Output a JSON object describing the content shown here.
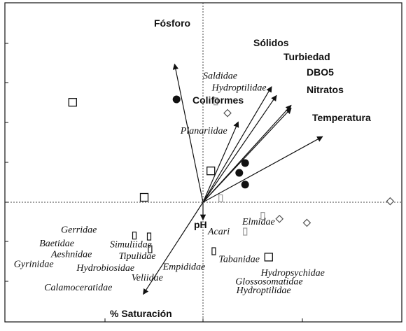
{
  "chart_data": {
    "type": "scatter",
    "subtype": "ordination-biplot",
    "axes": {
      "dashed_zero_lines": true,
      "frame": true
    },
    "environmental_vectors": [
      {
        "label": "Fósforo",
        "x": -0.29,
        "y": 1.41
      },
      {
        "label": "Sólidos",
        "x": 0.7,
        "y": 1.18
      },
      {
        "label": "Turbiedad",
        "x": 0.75,
        "y": 1.09
      },
      {
        "label": "DBO5",
        "x": 0.9,
        "y": 0.99
      },
      {
        "label": "Nitratos",
        "x": 0.9,
        "y": 0.96
      },
      {
        "label": "Coliformes",
        "x": 0.36,
        "y": 0.82
      },
      {
        "label": "Temperatura",
        "x": 1.22,
        "y": 0.67
      },
      {
        "label": "pH",
        "x": 0.0,
        "y": -0.18
      },
      {
        "label": "% Saturación",
        "x": -0.61,
        "y": -0.94
      }
    ],
    "taxa_labels": [
      {
        "label": "Saldidae",
        "x": 0.0,
        "y": 1.26
      },
      {
        "label": "Hydroptilidae",
        "x": 0.09,
        "y": 1.14
      },
      {
        "label": "Planariidae",
        "x": -0.23,
        "y": 0.7
      },
      {
        "label": "Elmidae",
        "x": 0.4,
        "y": -0.23
      },
      {
        "label": "Acari",
        "x": 0.05,
        "y": -0.33
      },
      {
        "label": "Gerridae",
        "x": -1.45,
        "y": -0.31
      },
      {
        "label": "Baetidae",
        "x": -1.67,
        "y": -0.45
      },
      {
        "label": "Simuliidae",
        "x": -0.95,
        "y": -0.46
      },
      {
        "label": "Aeshnidae",
        "x": -1.55,
        "y": -0.56
      },
      {
        "label": "Tipulidae",
        "x": -0.86,
        "y": -0.58
      },
      {
        "label": "Gyrinidae",
        "x": -1.93,
        "y": -0.66
      },
      {
        "label": "Hydrobiosidae",
        "x": -1.29,
        "y": -0.7
      },
      {
        "label": "Tabanidae",
        "x": 0.16,
        "y": -0.61
      },
      {
        "label": "Empididae",
        "x": -0.41,
        "y": -0.69
      },
      {
        "label": "Hydropsychidae",
        "x": 0.59,
        "y": -0.75
      },
      {
        "label": "Veliidae",
        "x": -0.73,
        "y": -0.8
      },
      {
        "label": "Glossosomatidae",
        "x": 0.33,
        "y": -0.84
      },
      {
        "label": "Calamoceratidae",
        "x": -1.62,
        "y": -0.9
      },
      {
        "label": "Hydroptilidae",
        "x": 0.34,
        "y": -0.93
      }
    ],
    "sites": [
      {
        "marker": "open-square",
        "x": -1.33,
        "y": 1.02
      },
      {
        "marker": "open-square",
        "x": 0.08,
        "y": 0.32
      },
      {
        "marker": "open-square",
        "x": -0.6,
        "y": 0.05
      },
      {
        "marker": "open-square",
        "x": 0.67,
        "y": -0.56
      },
      {
        "marker": "filled-circle",
        "x": -0.27,
        "y": 1.05
      },
      {
        "marker": "filled-circle",
        "x": 0.43,
        "y": 0.4
      },
      {
        "marker": "filled-circle",
        "x": 0.37,
        "y": 0.3
      },
      {
        "marker": "filled-circle",
        "x": 0.43,
        "y": 0.18
      },
      {
        "marker": "open-diamond",
        "x": 0.25,
        "y": 0.91
      },
      {
        "marker": "open-diamond",
        "x": 0.78,
        "y": -0.17
      },
      {
        "marker": "open-diamond",
        "x": 1.06,
        "y": -0.21
      },
      {
        "marker": "open-diamond",
        "x": 1.91,
        "y": 0.01
      },
      {
        "marker": "gray-small-rect",
        "x": 0.13,
        "y": 1.03
      },
      {
        "marker": "gray-small-rect",
        "x": 0.18,
        "y": 0.04
      },
      {
        "marker": "gray-small-rect",
        "x": 0.61,
        "y": -0.14
      },
      {
        "marker": "gray-small-rect",
        "x": 0.43,
        "y": -0.3
      },
      {
        "marker": "black-small-rect",
        "x": -0.7,
        "y": -0.34
      },
      {
        "marker": "black-small-rect",
        "x": -0.55,
        "y": -0.35
      },
      {
        "marker": "black-small-rect",
        "x": -0.54,
        "y": -0.48
      },
      {
        "marker": "black-small-rect",
        "x": 0.11,
        "y": -0.5
      }
    ]
  }
}
